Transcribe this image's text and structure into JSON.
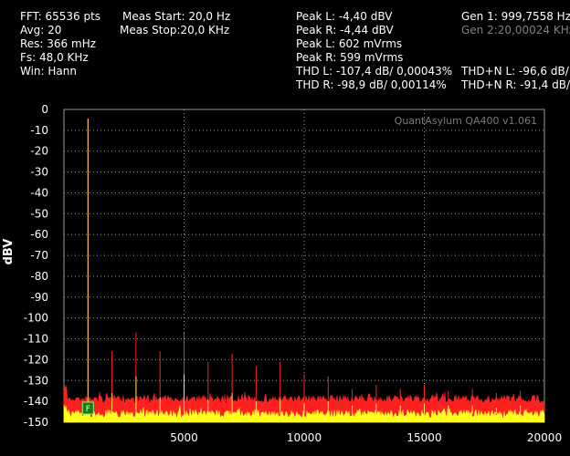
{
  "header": {
    "col1": [
      "FFT: 65536 pts",
      "Avg: 20",
      "Res: 366 mHz",
      "Fs: 48,0 KHz",
      "Win: Hann"
    ],
    "col2": [
      "Meas Start: 20,0 Hz",
      "Meas Stop:20,0 KHz"
    ],
    "col3": [
      "Peak L: -4,40 dBV",
      "Peak R: -4,44 dBV",
      "Peak L: 602 mVrms",
      "Peak R: 599 mVrms",
      "THD L: -107,4 dB/ 0,00043%",
      "THD R: -98,9 dB/ 0,00114%"
    ],
    "col4_gen1": "Gen 1: 999,7558 Hz",
    "col4_gen2": "Gen 2:20,00024 KHz",
    "col4_thdn": [
      "THD+N L: -96,6 dB/ 0,",
      "THD+N R: -91,4 dB/ 0,"
    ]
  },
  "chart_data": {
    "type": "line",
    "watermark": "QuantAsylum QA400 v1.061",
    "ylabel": "dBV",
    "xlim": [
      0,
      20000
    ],
    "ylim": [
      -150,
      0
    ],
    "x_ticks": [
      5000,
      10000,
      15000,
      20000
    ],
    "x_tick_labels": [
      "5000",
      "10000",
      "15000",
      "20000"
    ],
    "y_ticks": [
      0,
      -10,
      -20,
      -30,
      -40,
      -50,
      -60,
      -70,
      -80,
      -90,
      -100,
      -110,
      -120,
      -130,
      -140,
      -150
    ],
    "y_tick_labels": [
      "0",
      "-10",
      "-20",
      "-30",
      "-40",
      "-50",
      "-60",
      "-70",
      "-80",
      "-90",
      "-100",
      "-110",
      "-120",
      "-130",
      "-140",
      "-150"
    ],
    "grid": true,
    "series": [
      {
        "color": "#ff2020",
        "noise_floor": -139,
        "x": [
          1000,
          2000,
          3000,
          4000,
          5000,
          6000,
          7000,
          8000,
          9000,
          10000,
          11000,
          12000,
          13000,
          14000,
          15000,
          16000,
          17000,
          18000,
          19000
        ],
        "y": [
          -4.4,
          -116,
          -107,
          -116,
          -107,
          -121,
          -117,
          -123,
          -121,
          -127,
          -128,
          -134,
          -132,
          -134,
          -132,
          -135,
          -134,
          -136,
          -135
        ]
      },
      {
        "color": "#ffff20",
        "noise_floor": -146,
        "x": [
          1000,
          2000,
          3000,
          4000,
          5000,
          6000,
          7000,
          8000,
          9000,
          10000,
          11000,
          12000,
          13000,
          14000,
          15000,
          16000,
          17000,
          18000,
          19000
        ],
        "y": [
          -4.4,
          -136,
          -128,
          -138,
          -127,
          -139,
          -136,
          -140,
          -139,
          -141,
          -140,
          -142,
          -141,
          -142,
          -141,
          -142,
          -142,
          -143,
          -142
        ]
      }
    ],
    "marker_label": "F",
    "marker_x": 1000,
    "marker_y": -143
  }
}
